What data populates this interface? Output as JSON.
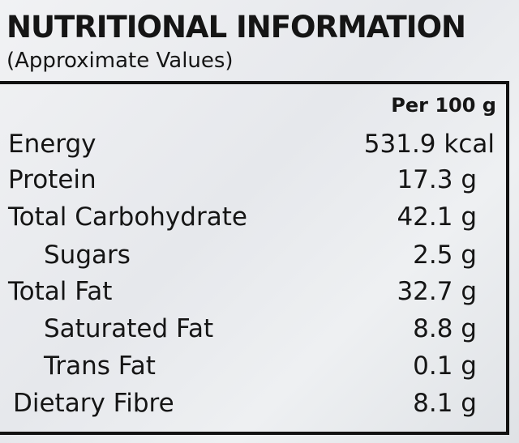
{
  "header": {
    "title": "NUTRITIONAL INFORMATION",
    "subtitle": "(Approximate Values)"
  },
  "table": {
    "column_header": "Per 100 g",
    "rows": [
      [
        "Energy",
        "531.9 kcal"
      ],
      [
        "Protein",
        "17.3 g"
      ],
      [
        "Total Carbohydrate",
        "42.1 g"
      ],
      [
        "Sugars",
        "2.5 g"
      ],
      [
        "Total Fat",
        "32.7 g"
      ],
      [
        "Saturated Fat",
        "8.8 g"
      ],
      [
        "Trans Fat",
        "0.1 g"
      ],
      [
        "Dietary Fibre",
        "8.1 g"
      ]
    ]
  }
}
